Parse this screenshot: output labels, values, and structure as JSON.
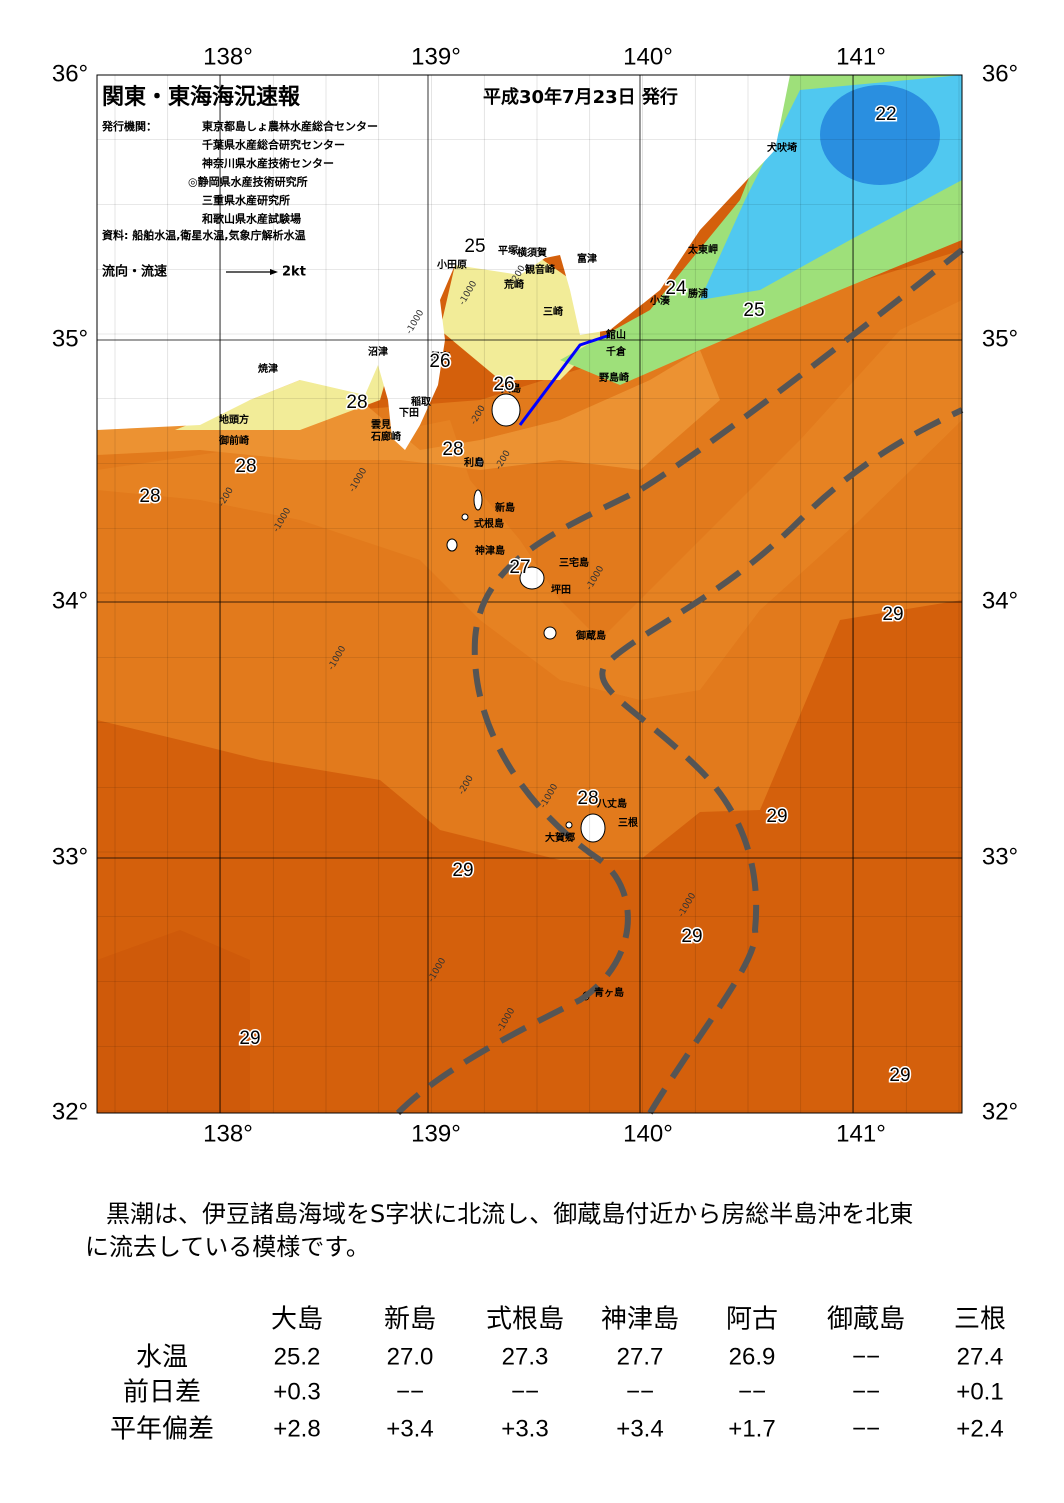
{
  "header": {
    "title": "関東・東海海況速報",
    "date": "平成30年7月23日 発行",
    "agency_label": "発行機関：",
    "agencies": [
      "東京都島しょ農林水産総合センター",
      "千葉県水産総合研究センター",
      "神奈川県水産技術センター",
      "◎静岡県水産技術研究所",
      "三重県水産研究所",
      "和歌山県水産試験場"
    ],
    "source": "資料: 船舶水温,衛星水温,気象庁解析水温",
    "legend_label": "流向・流速",
    "legend_speed": "2kt"
  },
  "map": {
    "lon_labels": [
      "138°",
      "139°",
      "140°",
      "141°"
    ],
    "lat_labels": [
      "36°",
      "35°",
      "34°",
      "33°",
      "32°"
    ],
    "places": [
      "犬吠埼",
      "太東岬",
      "勝浦",
      "小湊",
      "館山",
      "千倉",
      "野島崎",
      "富津",
      "平塚",
      "横須賀",
      "観音崎",
      "荒崎",
      "三崎",
      "小田原",
      "沼津",
      "焼津",
      "伊東",
      "稲取",
      "下田",
      "雲見",
      "石廊崎",
      "地頭方",
      "御前崎",
      "大島",
      "利島",
      "新島",
      "式根島",
      "神津島",
      "三宅島",
      "坪田",
      "御蔵島",
      "八丈島",
      "三根",
      "大賀郷",
      "青ヶ島"
    ],
    "contour_labels": [
      "22",
      "24",
      "25",
      "25",
      "26",
      "26",
      "27",
      "28",
      "28",
      "28",
      "28",
      "28",
      "29",
      "29",
      "29",
      "29",
      "29",
      "29"
    ],
    "depth_labels": [
      "-200",
      "-1000",
      "-200",
      "-1000",
      "-200",
      "-1000",
      "-200",
      "-1000",
      "-1000",
      "-1000",
      "-200",
      "-1000",
      "-1000",
      "-1000",
      "-1000"
    ]
  },
  "paragraph": [
    "黒潮は、伊豆諸島海域をS字状に北流し、御蔵島付近から房総半島沖を北東",
    "に流去している模様です。"
  ],
  "table": {
    "columns": [
      "大島",
      "新島",
      "式根島",
      "神津島",
      "阿古",
      "御蔵島",
      "三根"
    ],
    "rows": [
      {
        "label": "水温",
        "cells": [
          "25.2",
          "27.0",
          "27.3",
          "27.7",
          "26.9",
          "−−",
          "27.4"
        ]
      },
      {
        "label": "前日差",
        "cells": [
          "+0.3",
          "−−",
          "−−",
          "−−",
          "−−",
          "−−",
          "+0.1"
        ]
      },
      {
        "label": "平年偏差",
        "cells": [
          "+2.8",
          "+3.4",
          "+3.3",
          "+3.4",
          "+1.7",
          "−−",
          "+2.4"
        ]
      }
    ]
  }
}
